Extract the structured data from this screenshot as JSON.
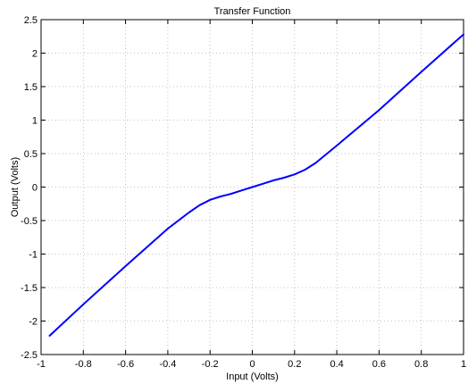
{
  "chart_data": {
    "type": "line",
    "title": "Transfer Function",
    "xlabel": "Input (Volts)",
    "ylabel": "Output (Volts)",
    "xlim": [
      -1,
      1
    ],
    "ylim": [
      -2.5,
      2.5
    ],
    "x_ticks": [
      "-1",
      "-0.8",
      "-0.6",
      "-0.4",
      "-0.2",
      "0",
      "0.2",
      "0.4",
      "0.6",
      "0.8",
      "1"
    ],
    "y_ticks": [
      "-2.5",
      "-2",
      "-1.5",
      "-1",
      "-0.5",
      "0",
      "0.5",
      "1",
      "1.5",
      "2",
      "2.5"
    ],
    "grid": true,
    "series": [
      {
        "color": "#0000ff",
        "x": [
          -0.96,
          -0.8,
          -0.6,
          -0.4,
          -0.3,
          -0.25,
          -0.2,
          -0.15,
          -0.1,
          -0.05,
          0,
          0.05,
          0.1,
          0.15,
          0.2,
          0.25,
          0.3,
          0.4,
          0.6,
          0.8,
          1.0
        ],
        "y": [
          -2.22,
          -1.75,
          -1.18,
          -0.62,
          -0.38,
          -0.27,
          -0.19,
          -0.14,
          -0.1,
          -0.05,
          0,
          0.05,
          0.1,
          0.14,
          0.19,
          0.26,
          0.36,
          0.62,
          1.15,
          1.72,
          2.28
        ]
      }
    ]
  }
}
